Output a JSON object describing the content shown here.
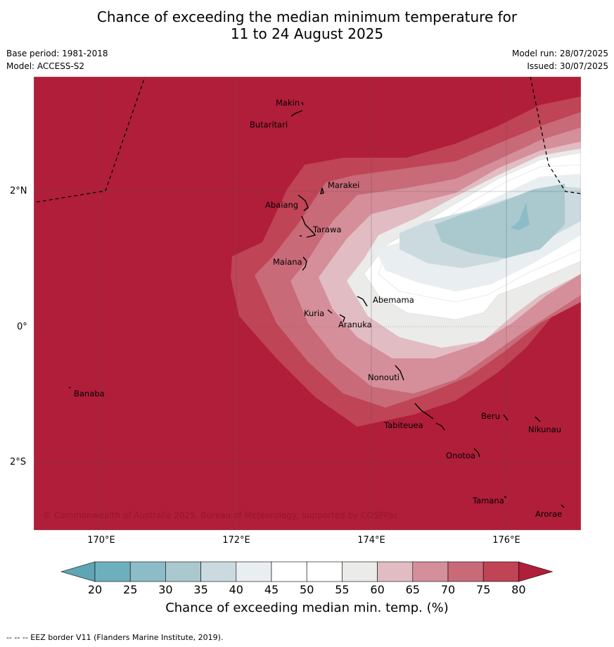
{
  "title_line1": "Chance of exceeding the median minimum temperature for",
  "title_line2": "11 to 24 August 2025",
  "base_period": "Base period: 1981-2018",
  "model": "Model: ACCESS-S2",
  "model_run": "Model run: 28/07/2025",
  "issued": "Issued: 30/07/2025",
  "copyright": "© Commonwealth of Australia 2025, Bureau of Meteorology, supported by COSPPac",
  "lat_ticks": [
    "2°N",
    "0°",
    "2°S"
  ],
  "lon_ticks": [
    "170°E",
    "172°E",
    "174°E",
    "176°E"
  ],
  "places": [
    "Makin",
    "Butaritari",
    "Marakei",
    "Abaiang",
    "Tarawa",
    "Maiana",
    "Abemama",
    "Kuria",
    "Aranuka",
    "Nonouti",
    "Banaba",
    "Beru",
    "Nikunau",
    "Tabiteuea",
    "Onotoa",
    "Tamana",
    "Arorae"
  ],
  "colorbar": {
    "ticks": [
      "20",
      "25",
      "30",
      "35",
      "40",
      "45",
      "50",
      "55",
      "60",
      "65",
      "70",
      "75",
      "80"
    ],
    "colors": [
      "#5fa6b4",
      "#6eafbd",
      "#8cbcc7",
      "#a9c9cf",
      "#cbdadf",
      "#e9eef0",
      "#ffffff",
      "#ffffff",
      "#ebebea",
      "#e2bcc3",
      "#d58f9a",
      "#c86a78",
      "#bf4455",
      "#b11e39"
    ],
    "label": "Chance of exceeding median min. temp. (%)"
  },
  "footnote": "-- -- -- EEZ border V11 (Flanders Marine Institute, 2019)."
}
